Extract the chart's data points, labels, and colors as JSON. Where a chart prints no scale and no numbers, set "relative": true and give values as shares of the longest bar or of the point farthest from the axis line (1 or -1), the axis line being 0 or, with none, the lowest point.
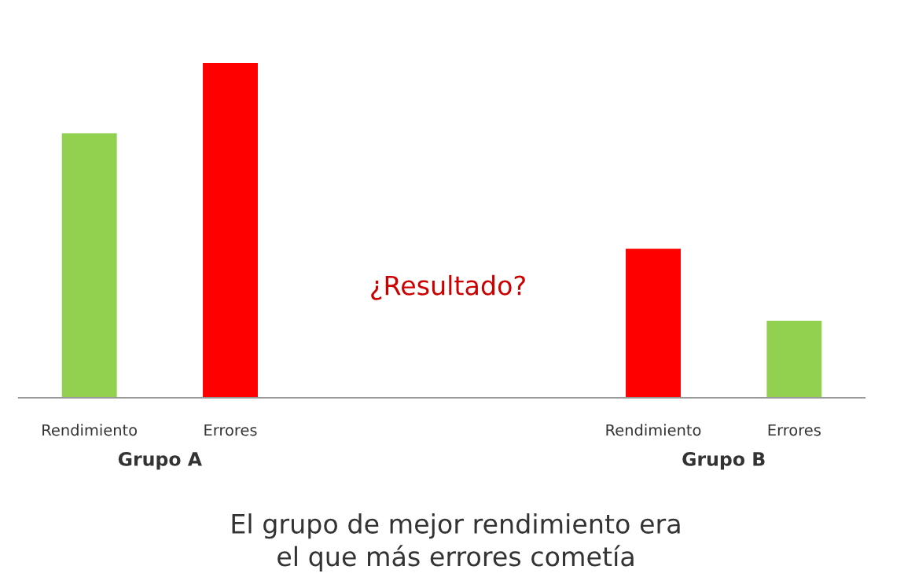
{
  "chart_data": {
    "type": "bar",
    "relative": true,
    "categories": [
      "Rendimiento",
      "Errores",
      null,
      null,
      "Rendimiento",
      "Errores"
    ],
    "values": [
      0.79,
      1,
      null,
      null,
      0.445,
      0.23
    ],
    "colors": [
      "#92d050",
      "#ff0000",
      null,
      null,
      "#ff0000",
      "#92d050"
    ],
    "grid": false,
    "legend": false,
    "annotations": [
      "Grupo A",
      "Grupo B",
      "¿Resultado?",
      "El grupo de mejor rendimiento era\nel que más errores cometía"
    ]
  }
}
